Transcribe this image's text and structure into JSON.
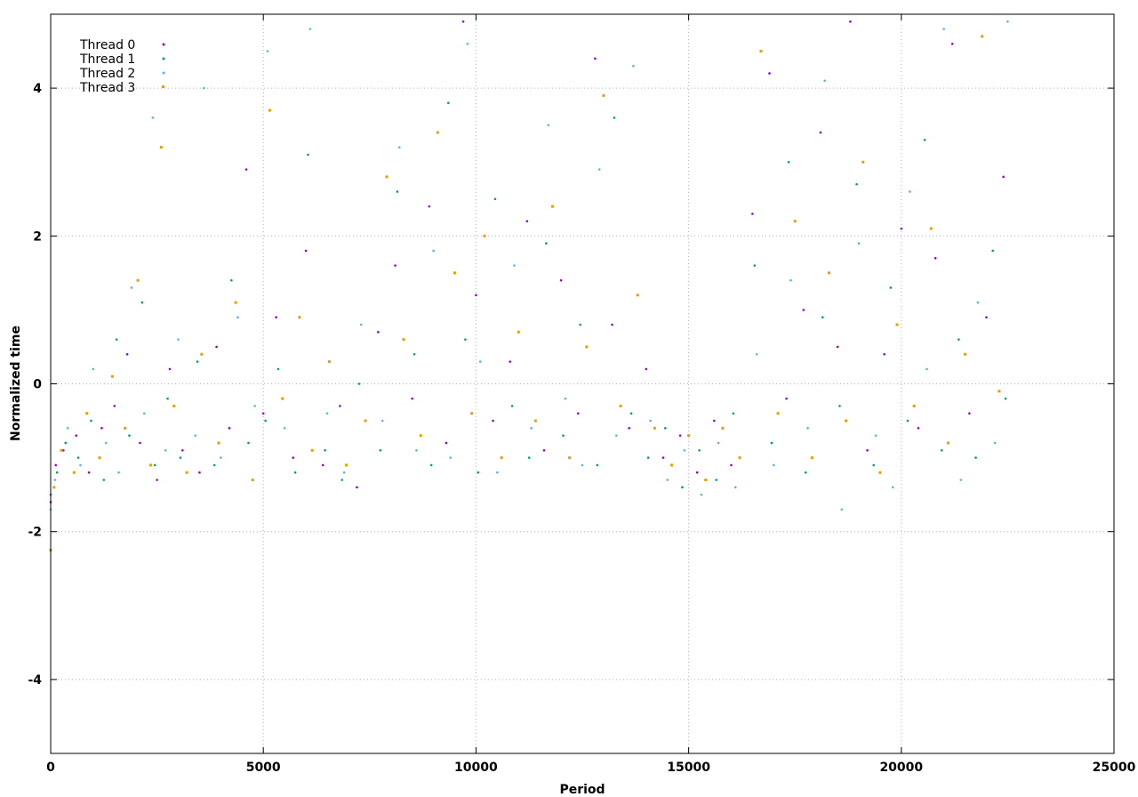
{
  "chart_data": {
    "type": "scatter",
    "title": "",
    "xlabel": "Period",
    "ylabel": "Normalized time",
    "xlim": [
      0,
      25000
    ],
    "ylim": [
      -5,
      5
    ],
    "x_ticks": [
      0,
      5000,
      10000,
      15000,
      20000,
      25000
    ],
    "y_ticks": [
      -4,
      -2,
      0,
      2,
      4
    ],
    "grid": true,
    "legend_position": "top-left",
    "series": [
      {
        "name": "Thread 0",
        "color": "#9400d3",
        "marker": "dot",
        "points": [
          [
            0,
            -1.6
          ],
          [
            120,
            -1.1
          ],
          [
            300,
            -0.9
          ],
          [
            600,
            -0.7
          ],
          [
            900,
            -1.2
          ],
          [
            1200,
            -0.6
          ],
          [
            1500,
            -0.3
          ],
          [
            1800,
            0.4
          ],
          [
            2100,
            -0.8
          ],
          [
            2500,
            -1.3
          ],
          [
            2800,
            0.2
          ],
          [
            3100,
            -0.9
          ],
          [
            3500,
            -1.2
          ],
          [
            3900,
            0.5
          ],
          [
            4200,
            -0.6
          ],
          [
            4600,
            2.9
          ],
          [
            5000,
            -0.4
          ],
          [
            5300,
            0.9
          ],
          [
            5700,
            -1.0
          ],
          [
            6000,
            1.8
          ],
          [
            6400,
            -1.1
          ],
          [
            6800,
            -0.3
          ],
          [
            7200,
            -1.4
          ],
          [
            7700,
            0.7
          ],
          [
            8100,
            1.6
          ],
          [
            8500,
            -0.2
          ],
          [
            8900,
            2.4
          ],
          [
            9300,
            -0.8
          ],
          [
            9700,
            4.9
          ],
          [
            10000,
            1.2
          ],
          [
            10400,
            -0.5
          ],
          [
            10800,
            0.3
          ],
          [
            11200,
            2.2
          ],
          [
            11600,
            -0.9
          ],
          [
            12000,
            1.4
          ],
          [
            12400,
            -0.4
          ],
          [
            12800,
            4.4
          ],
          [
            13200,
            0.8
          ],
          [
            13600,
            -0.6
          ],
          [
            14000,
            0.2
          ],
          [
            14400,
            -1.0
          ],
          [
            14800,
            -0.7
          ],
          [
            15200,
            -1.2
          ],
          [
            15600,
            -0.5
          ],
          [
            16000,
            -1.1
          ],
          [
            16500,
            2.3
          ],
          [
            16900,
            4.2
          ],
          [
            17300,
            -0.2
          ],
          [
            17700,
            1.0
          ],
          [
            18100,
            3.4
          ],
          [
            18500,
            0.5
          ],
          [
            18800,
            4.9
          ],
          [
            19200,
            -0.9
          ],
          [
            19600,
            0.4
          ],
          [
            20000,
            2.1
          ],
          [
            20400,
            -0.6
          ],
          [
            20800,
            1.7
          ],
          [
            21200,
            4.6
          ],
          [
            21600,
            -0.4
          ],
          [
            22000,
            0.9
          ],
          [
            22400,
            2.8
          ]
        ]
      },
      {
        "name": "Thread 1",
        "color": "#009e73",
        "marker": "dot",
        "points": [
          [
            0,
            -1.5
          ],
          [
            150,
            -1.2
          ],
          [
            350,
            -0.8
          ],
          [
            650,
            -1.0
          ],
          [
            950,
            -0.5
          ],
          [
            1250,
            -1.3
          ],
          [
            1550,
            0.6
          ],
          [
            1850,
            -0.7
          ],
          [
            2150,
            1.1
          ],
          [
            2450,
            -1.1
          ],
          [
            2750,
            -0.2
          ],
          [
            3050,
            -1.0
          ],
          [
            3450,
            0.3
          ],
          [
            3850,
            -1.1
          ],
          [
            4250,
            1.4
          ],
          [
            4650,
            -0.8
          ],
          [
            5050,
            -0.5
          ],
          [
            5350,
            0.2
          ],
          [
            5750,
            -1.2
          ],
          [
            6050,
            3.1
          ],
          [
            6450,
            -0.9
          ],
          [
            6850,
            -1.3
          ],
          [
            7250,
            0.0
          ],
          [
            7750,
            -0.9
          ],
          [
            8150,
            2.6
          ],
          [
            8550,
            0.4
          ],
          [
            8950,
            -1.1
          ],
          [
            9350,
            3.8
          ],
          [
            9750,
            0.6
          ],
          [
            10050,
            -1.2
          ],
          [
            10450,
            2.5
          ],
          [
            10850,
            -0.3
          ],
          [
            11250,
            -1.0
          ],
          [
            11650,
            1.9
          ],
          [
            12050,
            -0.7
          ],
          [
            12450,
            0.8
          ],
          [
            12850,
            -1.1
          ],
          [
            13250,
            3.6
          ],
          [
            13650,
            -0.4
          ],
          [
            14050,
            -1.0
          ],
          [
            14450,
            -0.6
          ],
          [
            14850,
            -1.4
          ],
          [
            15250,
            -0.9
          ],
          [
            15650,
            -1.3
          ],
          [
            16050,
            -0.4
          ],
          [
            16550,
            1.6
          ],
          [
            16950,
            -0.8
          ],
          [
            17350,
            3.0
          ],
          [
            17750,
            -1.2
          ],
          [
            18150,
            0.9
          ],
          [
            18550,
            -0.3
          ],
          [
            18950,
            2.7
          ],
          [
            19350,
            -1.1
          ],
          [
            19750,
            1.3
          ],
          [
            20150,
            -0.5
          ],
          [
            20550,
            3.3
          ],
          [
            20950,
            -0.9
          ],
          [
            21350,
            0.6
          ],
          [
            21750,
            -1.0
          ],
          [
            22150,
            1.8
          ],
          [
            22450,
            -0.2
          ]
        ]
      },
      {
        "name": "Thread 2",
        "color": "#56b4e9",
        "marker": "dot",
        "points": [
          [
            0,
            -1.7
          ],
          [
            100,
            -1.3
          ],
          [
            400,
            -0.6
          ],
          [
            700,
            -1.1
          ],
          [
            1000,
            0.2
          ],
          [
            1300,
            -0.8
          ],
          [
            1600,
            -1.2
          ],
          [
            1900,
            1.3
          ],
          [
            2200,
            -0.4
          ],
          [
            2400,
            3.6
          ],
          [
            2700,
            -0.9
          ],
          [
            3000,
            0.6
          ],
          [
            3400,
            -0.7
          ],
          [
            3600,
            4.0
          ],
          [
            4000,
            -1.0
          ],
          [
            4400,
            0.9
          ],
          [
            4800,
            -0.3
          ],
          [
            5100,
            4.5
          ],
          [
            5500,
            -0.6
          ],
          [
            6100,
            4.8
          ],
          [
            6500,
            -0.4
          ],
          [
            6900,
            -1.2
          ],
          [
            7300,
            0.8
          ],
          [
            7800,
            -0.5
          ],
          [
            8200,
            3.2
          ],
          [
            8600,
            -0.9
          ],
          [
            9000,
            1.8
          ],
          [
            9400,
            -1.0
          ],
          [
            9800,
            4.6
          ],
          [
            10100,
            0.3
          ],
          [
            10500,
            -1.2
          ],
          [
            10900,
            1.6
          ],
          [
            11300,
            -0.6
          ],
          [
            11700,
            3.5
          ],
          [
            12100,
            -0.2
          ],
          [
            12500,
            -1.1
          ],
          [
            12900,
            2.9
          ],
          [
            13300,
            -0.7
          ],
          [
            13700,
            4.3
          ],
          [
            14100,
            -0.5
          ],
          [
            14500,
            -1.3
          ],
          [
            14900,
            -0.9
          ],
          [
            15300,
            -1.5
          ],
          [
            15700,
            -0.8
          ],
          [
            16100,
            -1.4
          ],
          [
            16600,
            0.4
          ],
          [
            17000,
            -1.1
          ],
          [
            17400,
            1.4
          ],
          [
            17800,
            -0.6
          ],
          [
            18200,
            4.1
          ],
          [
            18600,
            -1.7
          ],
          [
            19000,
            1.9
          ],
          [
            19400,
            -0.7
          ],
          [
            19800,
            -1.4
          ],
          [
            20200,
            2.6
          ],
          [
            20600,
            0.2
          ],
          [
            21000,
            4.8
          ],
          [
            21400,
            -1.3
          ],
          [
            21800,
            1.1
          ],
          [
            22200,
            -0.8
          ],
          [
            22500,
            4.9
          ]
        ]
      },
      {
        "name": "Thread 3",
        "color": "#e69f00",
        "marker": "square",
        "points": [
          [
            0,
            -2.25
          ],
          [
            80,
            -1.4
          ],
          [
            250,
            -0.9
          ],
          [
            550,
            -1.2
          ],
          [
            850,
            -0.4
          ],
          [
            1150,
            -1.0
          ],
          [
            1450,
            0.1
          ],
          [
            1750,
            -0.6
          ],
          [
            2050,
            1.4
          ],
          [
            2350,
            -1.1
          ],
          [
            2600,
            3.2
          ],
          [
            2900,
            -0.3
          ],
          [
            3200,
            -1.2
          ],
          [
            3550,
            0.4
          ],
          [
            3950,
            -0.8
          ],
          [
            4350,
            1.1
          ],
          [
            4750,
            -1.3
          ],
          [
            5150,
            3.7
          ],
          [
            5450,
            -0.2
          ],
          [
            5850,
            0.9
          ],
          [
            6150,
            -0.9
          ],
          [
            6550,
            0.3
          ],
          [
            6950,
            -1.1
          ],
          [
            7400,
            -0.5
          ],
          [
            7900,
            2.8
          ],
          [
            8300,
            0.6
          ],
          [
            8700,
            -0.7
          ],
          [
            9100,
            3.4
          ],
          [
            9500,
            1.5
          ],
          [
            9900,
            -0.4
          ],
          [
            10200,
            2.0
          ],
          [
            10600,
            -1.0
          ],
          [
            11000,
            0.7
          ],
          [
            11400,
            -0.5
          ],
          [
            11800,
            2.4
          ],
          [
            12200,
            -1.0
          ],
          [
            12600,
            0.5
          ],
          [
            13000,
            3.9
          ],
          [
            13400,
            -0.3
          ],
          [
            13800,
            1.2
          ],
          [
            14200,
            -0.6
          ],
          [
            14600,
            -1.1
          ],
          [
            15000,
            -0.7
          ],
          [
            15400,
            -1.3
          ],
          [
            15800,
            -0.6
          ],
          [
            16200,
            -1.0
          ],
          [
            16700,
            4.5
          ],
          [
            17100,
            -0.4
          ],
          [
            17500,
            2.2
          ],
          [
            17900,
            -1.0
          ],
          [
            18300,
            1.5
          ],
          [
            18700,
            -0.5
          ],
          [
            19100,
            3.0
          ],
          [
            19500,
            -1.2
          ],
          [
            19900,
            0.8
          ],
          [
            20300,
            -0.3
          ],
          [
            20700,
            2.1
          ],
          [
            21100,
            -0.8
          ],
          [
            21500,
            0.4
          ],
          [
            21900,
            4.7
          ],
          [
            22300,
            -0.1
          ]
        ]
      }
    ]
  }
}
